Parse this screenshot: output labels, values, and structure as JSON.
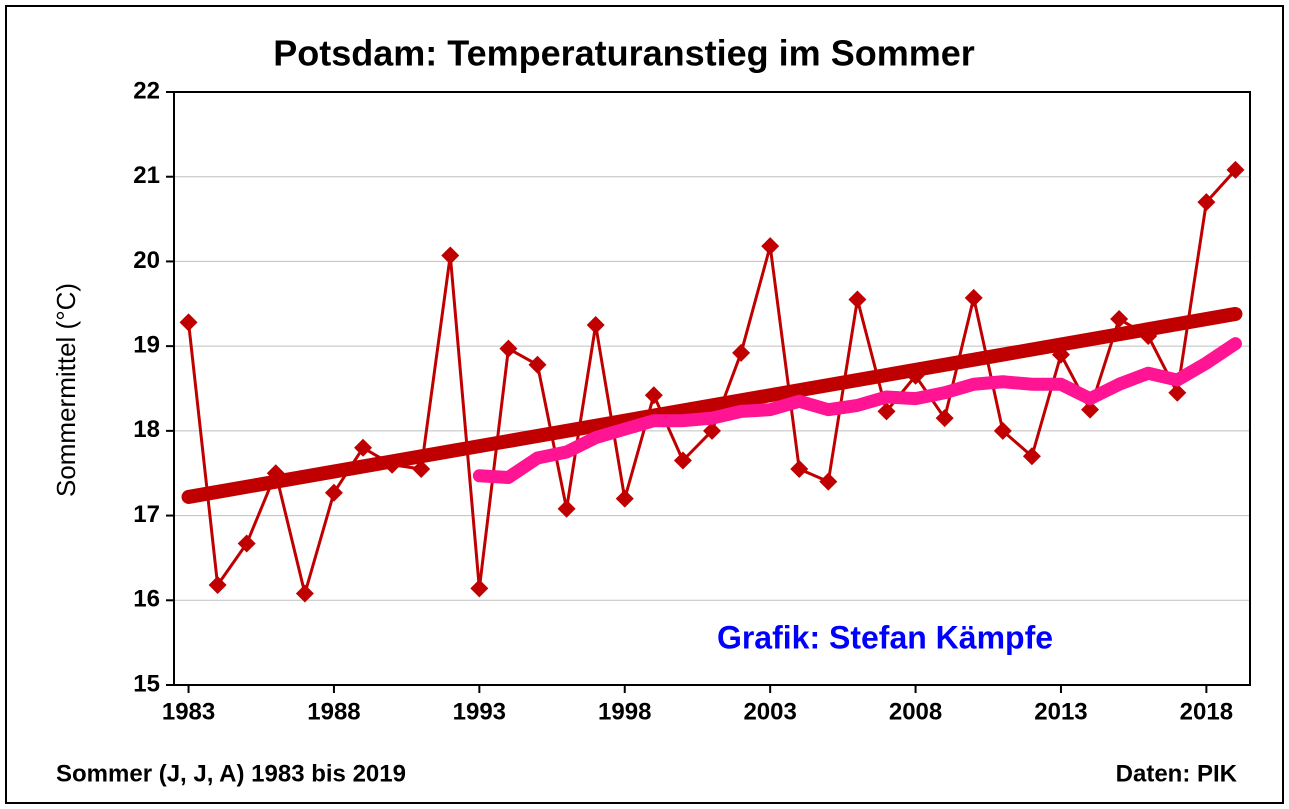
{
  "chart_data": {
    "type": "line",
    "title": "Potsdam: Temperaturanstieg im Sommer",
    "y_label": "Sommermittel (°C)",
    "x_label": "Sommer (J, J, A) 1983 bis 2019",
    "annotations": [
      "Grafik: Stefan Kämpfe",
      "Daten: PIK"
    ],
    "annotation_color": "#0000ff",
    "xlim": [
      1982.5,
      2019.5
    ],
    "xticks": [
      1983,
      1988,
      1993,
      1998,
      2003,
      2008,
      2013,
      2018
    ],
    "ylim": [
      15,
      22
    ],
    "yticks": [
      15,
      16,
      17,
      18,
      19,
      20,
      21,
      22
    ],
    "grid": true,
    "series": [
      {
        "color": "#c00000",
        "marker": "diamond",
        "x": [
          1983,
          1984,
          1985,
          1986,
          1987,
          1988,
          1989,
          1990,
          1991,
          1992,
          1993,
          1994,
          1995,
          1996,
          1997,
          1998,
          1999,
          2000,
          2001,
          2002,
          2003,
          2004,
          2005,
          2006,
          2007,
          2008,
          2009,
          2010,
          2011,
          2012,
          2013,
          2014,
          2015,
          2016,
          2017,
          2018,
          2019
        ],
        "values": [
          19.28,
          16.18,
          16.67,
          17.5,
          16.08,
          17.27,
          17.8,
          17.6,
          17.55,
          20.07,
          16.14,
          18.97,
          18.78,
          17.08,
          19.25,
          17.2,
          18.42,
          17.65,
          18.0,
          18.92,
          20.18,
          17.55,
          17.4,
          19.55,
          18.23,
          18.65,
          18.15,
          19.57,
          18.0,
          17.7,
          18.9,
          18.25,
          19.32,
          19.12,
          18.45,
          20.7,
          21.08
        ]
      },
      {
        "color": "#c00000",
        "width": 14,
        "x": [
          1983,
          2019
        ],
        "values": [
          17.22,
          19.38
        ]
      },
      {
        "color": "#ff1493",
        "width": 13,
        "x": [
          1993,
          1994,
          1995,
          1996,
          1997,
          1998,
          1999,
          2000,
          2001,
          2002,
          2003,
          2004,
          2005,
          2006,
          2007,
          2008,
          2009,
          2010,
          2011,
          2012,
          2013,
          2014,
          2015,
          2016,
          2017,
          2018,
          2019
        ],
        "values": [
          17.47,
          17.45,
          17.68,
          17.75,
          17.92,
          18.02,
          18.12,
          18.12,
          18.15,
          18.23,
          18.25,
          18.35,
          18.25,
          18.3,
          18.4,
          18.38,
          18.45,
          18.55,
          18.58,
          18.55,
          18.55,
          18.38,
          18.55,
          18.68,
          18.6,
          18.8,
          19.03
        ]
      }
    ]
  }
}
